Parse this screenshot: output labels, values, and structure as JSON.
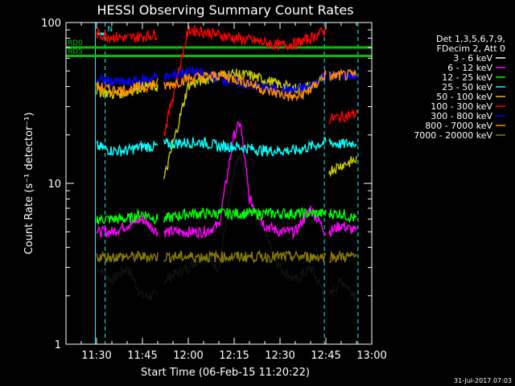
{
  "chart_data": {
    "type": "line",
    "title": "HESSI Observing Summary Count Rates",
    "xlabel": "Start Time (06-Feb-15 11:20:22)",
    "ylabel": "Count Rate (s⁻¹ detector⁻¹)",
    "yscale": "log",
    "ylim": [
      1,
      100
    ],
    "xlim_min": [
      0,
      100
    ],
    "x_ticks": [
      {
        "min": 10,
        "label": "11:30"
      },
      {
        "min": 25,
        "label": "11:45"
      },
      {
        "min": 40,
        "label": "12:00"
      },
      {
        "min": 55,
        "label": "12:15"
      },
      {
        "min": 70,
        "label": "12:30"
      },
      {
        "min": 85,
        "label": "12:45"
      },
      {
        "min": 100,
        "label": "13:00"
      }
    ],
    "y_ticks": [
      {
        "value": 1,
        "label": "1"
      },
      {
        "value": 10,
        "label": "10"
      },
      {
        "value": 100,
        "label": "100"
      }
    ],
    "legend_header": [
      "Det 1,3,5,6,7,9,",
      "FDecim 2, Att 0"
    ],
    "legend_placement": "right",
    "markers": [
      {
        "label": "N",
        "color": "#00ffff",
        "value": 85,
        "x_min": 10,
        "x_max": 13
      },
      {
        "label": "RD0",
        "color": "#00c000",
        "value": 70,
        "x_min": 0,
        "x_max": 100
      },
      {
        "label": "RD5",
        "color": "#00c000",
        "value": 62,
        "x_min": 0,
        "x_max": 100
      }
    ],
    "gaps": [
      {
        "start": 0,
        "end": 10
      },
      {
        "start": 30,
        "end": 32
      },
      {
        "start": 85,
        "end": 86
      },
      {
        "start": 95,
        "end": 100
      }
    ],
    "vlines": [
      {
        "min": 9.6,
        "color": "#00ffff",
        "dashed": false
      },
      {
        "min": 12.8,
        "color": "#00ffff",
        "dashed": true
      },
      {
        "min": 84.5,
        "color": "#00ffff",
        "dashed": true
      },
      {
        "min": 95.5,
        "color": "#00ffff",
        "dashed": true
      }
    ],
    "series": [
      {
        "name": "3 - 6 keV",
        "color": "#000000",
        "x": [
          10,
          15,
          20,
          25,
          30,
          32,
          40,
          45,
          50,
          55,
          57,
          60,
          65,
          70,
          75,
          80,
          85,
          86,
          90,
          95
        ],
        "y": [
          3,
          2.5,
          3,
          2,
          2,
          2.5,
          3,
          3.5,
          3,
          12,
          15,
          8,
          5,
          3,
          2.5,
          3,
          2,
          2,
          2.5,
          2
        ]
      },
      {
        "name": "6 - 12 keV",
        "color": "#ff00ff",
        "x": [
          10,
          15,
          20,
          25,
          30,
          32,
          40,
          45,
          50,
          55,
          57,
          60,
          65,
          70,
          75,
          80,
          85,
          86,
          90,
          95
        ],
        "y": [
          5,
          5,
          5.5,
          6,
          5,
          5,
          5,
          5,
          5.5,
          20,
          24,
          8,
          5.5,
          5,
          5,
          7,
          5,
          5,
          5.5,
          5
        ]
      },
      {
        "name": "12 - 25 keV",
        "color": "#00ff00",
        "x": [
          10,
          15,
          20,
          25,
          30,
          32,
          40,
          45,
          50,
          55,
          60,
          65,
          70,
          75,
          80,
          85,
          86,
          90,
          95
        ],
        "y": [
          6,
          6,
          6,
          6.5,
          6,
          6,
          6.5,
          6.5,
          6.5,
          6.5,
          6.5,
          6.5,
          6.5,
          6.5,
          6.5,
          6.5,
          6.5,
          6.5,
          6
        ]
      },
      {
        "name": "25 - 50 keV",
        "color": "#00ffff",
        "x": [
          10,
          15,
          20,
          25,
          30,
          32,
          40,
          45,
          50,
          55,
          60,
          65,
          70,
          75,
          80,
          85,
          86,
          90,
          95
        ],
        "y": [
          17,
          16,
          16,
          17,
          17,
          17.5,
          18,
          18,
          17,
          17,
          16.5,
          16,
          16,
          16,
          17,
          18,
          18,
          17.5,
          18
        ]
      },
      {
        "name": "50 - 100 keV",
        "color": "#cccc00",
        "x": [
          10,
          15,
          20,
          25,
          30,
          32,
          40,
          45,
          50,
          55,
          60,
          65,
          70,
          75,
          80,
          85,
          86,
          90,
          95
        ],
        "y": [
          38,
          36,
          37,
          40,
          40,
          10.5,
          41,
          44,
          47,
          48,
          47,
          44,
          41,
          39,
          40,
          46,
          12,
          13,
          14
        ]
      },
      {
        "name": "100 - 300 keV",
        "color": "#ff0000",
        "x": [
          10,
          15,
          20,
          25,
          30,
          32,
          40,
          45,
          50,
          55,
          60,
          65,
          70,
          75,
          80,
          85,
          86,
          90,
          95
        ],
        "y": [
          85,
          82,
          80,
          82,
          85,
          20,
          90,
          88,
          84,
          80,
          78,
          75,
          72,
          74,
          80,
          90,
          25,
          26,
          27
        ]
      },
      {
        "name": "300 - 800 keV",
        "color": "#0000ff",
        "x": [
          10,
          15,
          20,
          25,
          30,
          32,
          40,
          45,
          50,
          55,
          60,
          65,
          70,
          75,
          80,
          85,
          86,
          90,
          95
        ],
        "y": [
          44,
          43,
          42,
          44,
          46,
          45,
          50,
          48,
          45,
          43,
          41,
          39,
          38,
          38,
          40,
          48,
          46,
          47,
          47
        ]
      },
      {
        "name": "800 - 7000 keV",
        "color": "#ff8c00",
        "x": [
          10,
          15,
          20,
          25,
          30,
          32,
          40,
          45,
          50,
          55,
          60,
          65,
          70,
          75,
          80,
          85,
          86,
          90,
          95
        ],
        "y": [
          40,
          38,
          38,
          40,
          42,
          40,
          45,
          46,
          47,
          45,
          42,
          38,
          36,
          34,
          38,
          48,
          46,
          47,
          47
        ]
      },
      {
        "name": "7000 - 20000 keV",
        "color": "#8b7d00",
        "x": [
          10,
          15,
          20,
          25,
          30,
          32,
          40,
          45,
          50,
          55,
          60,
          65,
          70,
          75,
          80,
          85,
          86,
          90,
          95
        ],
        "y": [
          3.5,
          3.5,
          3.5,
          3.5,
          3.5,
          3.5,
          3.5,
          3.5,
          3.5,
          3.5,
          3.5,
          3.5,
          3.5,
          3.5,
          3.5,
          3.5,
          3.5,
          3.5,
          3.5
        ]
      }
    ]
  },
  "footer": {
    "date": "31-Jul-2017 07:03"
  }
}
